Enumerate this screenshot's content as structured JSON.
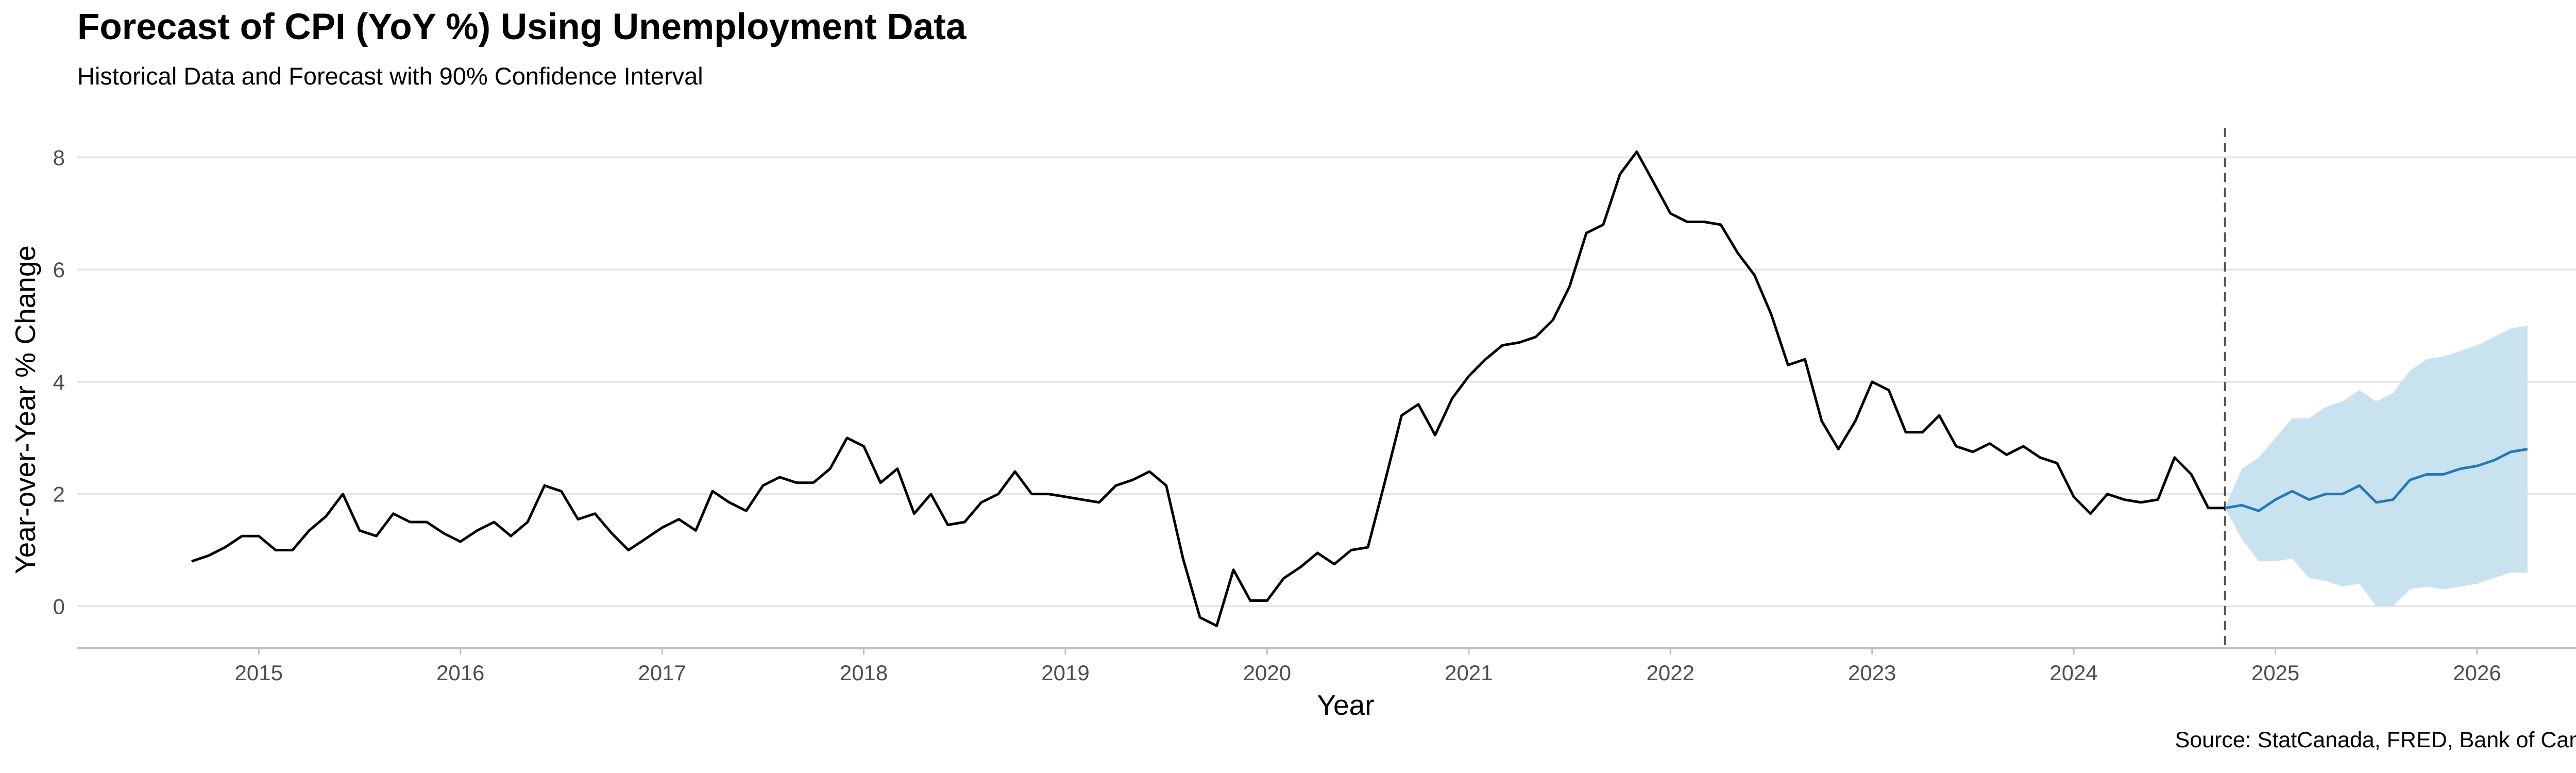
{
  "chart_data": {
    "type": "line",
    "title": "Forecast of CPI (YoY %) Using Unemployment Data",
    "subtitle": "Historical Data and Forecast with 90% Confidence Interval",
    "caption": "Source: StatCanada, FRED, Bank of Canada",
    "xlabel": "Year",
    "ylabel": "Year-over-Year % Change",
    "xlim": [
      2014.1,
      2026.7
    ],
    "ylim": [
      -0.75,
      8.6
    ],
    "xticks": [
      2015,
      2016,
      2017,
      2018,
      2019,
      2020,
      2021,
      2022,
      2023,
      2024,
      2025,
      2026
    ],
    "xtick_labels": [
      "2015",
      "2016",
      "2017",
      "2018",
      "2019",
      "2020",
      "2021",
      "2022",
      "2023",
      "2024",
      "2025",
      "2026"
    ],
    "yticks": [
      0,
      2,
      4,
      6,
      8
    ],
    "ytick_labels": [
      "0",
      "2",
      "4",
      "6",
      "8"
    ],
    "grid": "horizontal",
    "forecast_start": 2024.75,
    "colors": {
      "historical": "#000000",
      "forecast": "#2379b8",
      "confidence_band": "#c9e2f0",
      "gridline": "#e6e6e6",
      "vline": "#555555",
      "axis": "#bfbfbf"
    },
    "series": [
      {
        "key": "historical",
        "x": [
          2014.667,
          2014.75,
          2014.833,
          2014.917,
          2015.0,
          2015.083,
          2015.167,
          2015.25,
          2015.333,
          2015.417,
          2015.5,
          2015.583,
          2015.667,
          2015.75,
          2015.833,
          2015.917,
          2016.0,
          2016.083,
          2016.167,
          2016.25,
          2016.333,
          2016.417,
          2016.5,
          2016.583,
          2016.667,
          2016.75,
          2016.833,
          2016.917,
          2017.0,
          2017.083,
          2017.167,
          2017.25,
          2017.333,
          2017.417,
          2017.5,
          2017.583,
          2017.667,
          2017.75,
          2017.833,
          2017.917,
          2018.0,
          2018.083,
          2018.167,
          2018.25,
          2018.333,
          2018.417,
          2018.5,
          2018.583,
          2018.667,
          2018.75,
          2018.833,
          2018.917,
          2019.0,
          2019.083,
          2019.167,
          2019.25,
          2019.333,
          2019.417,
          2019.5,
          2019.583,
          2019.667,
          2019.75,
          2019.833,
          2019.917,
          2020.0,
          2020.083,
          2020.167,
          2020.25,
          2020.333,
          2020.417,
          2020.5,
          2020.583,
          2020.667,
          2020.75,
          2020.833,
          2020.917,
          2021.0,
          2021.083,
          2021.167,
          2021.25,
          2021.333,
          2021.417,
          2021.5,
          2021.583,
          2021.667,
          2021.75,
          2021.833,
          2021.917,
          2022.0,
          2022.083,
          2022.167,
          2022.25,
          2022.333,
          2022.417,
          2022.5,
          2022.583,
          2022.667,
          2022.75,
          2022.833,
          2022.917,
          2023.0,
          2023.083,
          2023.167,
          2023.25,
          2023.333,
          2023.417,
          2023.5,
          2023.583,
          2023.667,
          2023.75,
          2023.833,
          2023.917,
          2024.0,
          2024.083,
          2024.167,
          2024.25,
          2024.333,
          2024.417,
          2024.5,
          2024.583,
          2024.667,
          2024.75
        ],
        "values": [
          0.8,
          0.9,
          1.05,
          1.25,
          1.25,
          1.0,
          1.0,
          1.35,
          1.6,
          2.0,
          1.35,
          1.25,
          1.65,
          1.5,
          1.5,
          1.3,
          1.15,
          1.35,
          1.5,
          1.25,
          1.5,
          2.15,
          2.05,
          1.55,
          1.65,
          1.3,
          1.0,
          1.2,
          1.4,
          1.55,
          1.35,
          2.05,
          1.85,
          1.7,
          2.15,
          2.3,
          2.2,
          2.2,
          2.45,
          3.0,
          2.85,
          2.2,
          2.45,
          1.65,
          2.0,
          1.45,
          1.5,
          1.85,
          2.0,
          2.4,
          2.0,
          2.0,
          1.95,
          1.9,
          1.85,
          2.15,
          2.25,
          2.4,
          2.15,
          0.85,
          -0.2,
          -0.35,
          0.65,
          0.1,
          0.1,
          0.5,
          0.7,
          0.95,
          0.75,
          1.0,
          1.05,
          2.2,
          3.4,
          3.6,
          3.05,
          3.7,
          4.1,
          4.4,
          4.65,
          4.7,
          4.8,
          5.1,
          5.7,
          6.65,
          6.8,
          7.7,
          8.1,
          7.55,
          7.0,
          6.85,
          6.85,
          6.8,
          6.3,
          5.9,
          5.2,
          4.3,
          4.4,
          3.3,
          2.8,
          3.3,
          4.0,
          3.85,
          3.1,
          3.1,
          3.4,
          2.85,
          2.75,
          2.9,
          2.7,
          2.85,
          2.65,
          2.55,
          1.95,
          1.65,
          2.0,
          1.9,
          1.85,
          1.9,
          2.65,
          2.35,
          1.75,
          1.75
        ]
      },
      {
        "key": "forecast",
        "x": [
          2024.75,
          2024.833,
          2024.917,
          2025.0,
          2025.083,
          2025.167,
          2025.25,
          2025.333,
          2025.417,
          2025.5,
          2025.583,
          2025.667,
          2025.75,
          2025.833,
          2025.917,
          2026.0,
          2026.083,
          2026.167,
          2026.25
        ],
        "values": [
          1.75,
          1.8,
          1.7,
          1.9,
          2.05,
          1.9,
          2.0,
          2.0,
          2.15,
          1.85,
          1.9,
          2.25,
          2.35,
          2.35,
          2.45,
          2.5,
          2.6,
          2.75,
          2.8
        ],
        "lower": [
          1.75,
          1.2,
          0.8,
          0.8,
          0.85,
          0.5,
          0.45,
          0.35,
          0.4,
          0.0,
          0.0,
          0.3,
          0.35,
          0.3,
          0.35,
          0.4,
          0.5,
          0.6,
          0.6
        ],
        "upper": [
          1.75,
          2.45,
          2.65,
          3.0,
          3.35,
          3.35,
          3.55,
          3.65,
          3.85,
          3.65,
          3.8,
          4.2,
          4.4,
          4.45,
          4.55,
          4.65,
          4.8,
          4.95,
          5.0
        ]
      }
    ]
  }
}
